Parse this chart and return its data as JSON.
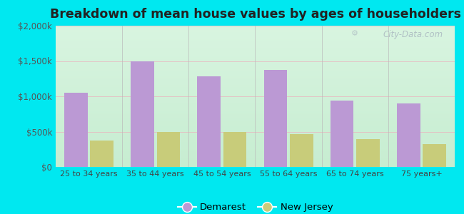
{
  "title": "Breakdown of mean house values by ages of householders",
  "categories": [
    "25 to 34 years",
    "35 to 44 years",
    "45 to 54 years",
    "55 to 64 years",
    "65 to 74 years",
    "75 years+"
  ],
  "demarest": [
    1050000,
    1490000,
    1280000,
    1370000,
    940000,
    900000
  ],
  "new_jersey": [
    370000,
    500000,
    500000,
    465000,
    390000,
    320000
  ],
  "demarest_color": "#bb99d4",
  "new_jersey_color": "#c8cc7a",
  "ylim": [
    0,
    2000000
  ],
  "yticks": [
    0,
    500000,
    1000000,
    1500000,
    2000000
  ],
  "ytick_labels": [
    "$0",
    "$500k",
    "$1,000k",
    "$1,500k",
    "$2,000k"
  ],
  "legend_demarest": "Demarest",
  "legend_nj": "New Jersey",
  "background_outer": "#00e8f0",
  "grid_color": "#e8b8c0",
  "watermark": "City-Data.com",
  "bar_width": 0.35,
  "bg_top_color": "#c8ecd0",
  "bg_bottom_color": "#e8f5e0"
}
